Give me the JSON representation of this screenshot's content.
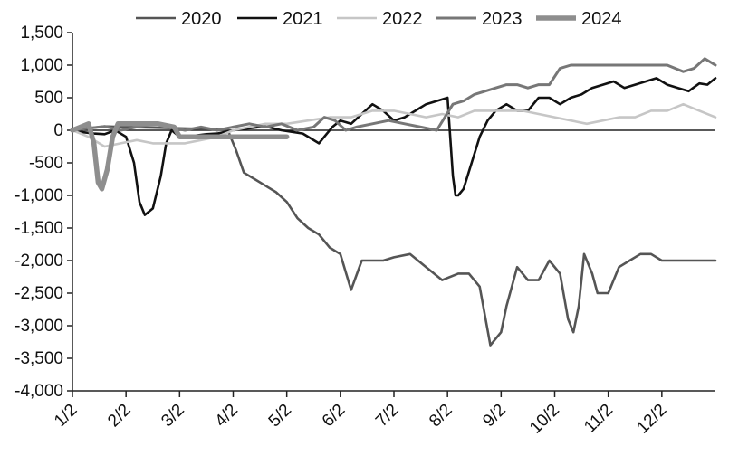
{
  "chart_data": {
    "type": "line",
    "title": "",
    "xlabel": "",
    "ylabel": "",
    "ylim": [
      -4000,
      1500
    ],
    "yticks": [
      1500,
      1000,
      500,
      0,
      -500,
      -1000,
      -1500,
      -2000,
      -2500,
      -3000,
      -3500,
      -4000
    ],
    "ytick_labels": [
      "1,500",
      "1,000",
      "500",
      "0",
      "-500",
      "-1,000",
      "-1,500",
      "-2,000",
      "-2,500",
      "-3,000",
      "-3,500",
      "-4,000"
    ],
    "xlim": [
      0,
      12
    ],
    "xticks": [
      0,
      1,
      2,
      3,
      4,
      5,
      6,
      7,
      8,
      9,
      10,
      11
    ],
    "xtick_labels": [
      "1/2",
      "2/2",
      "3/2",
      "4/2",
      "5/2",
      "6/2",
      "7/2",
      "8/2",
      "9/2",
      "10/2",
      "11/2",
      "12/2"
    ],
    "grid": false,
    "legend": "top",
    "series": [
      {
        "name": "2020",
        "color": "#555555",
        "width": 2.6,
        "x": [
          0,
          0.3,
          0.6,
          1.0,
          1.5,
          2.0,
          2.5,
          2.9,
          3.05,
          3.2,
          3.4,
          3.6,
          3.8,
          4.0,
          4.2,
          4.4,
          4.6,
          4.8,
          5.0,
          5.2,
          5.4,
          5.5,
          5.6,
          5.7,
          5.8,
          6.0,
          6.3,
          6.6,
          6.9,
          7.2,
          7.4,
          7.6,
          7.8,
          8.0,
          8.05,
          8.1,
          8.2,
          8.3,
          8.5,
          8.7,
          8.9,
          9.1,
          9.25,
          9.35,
          9.45,
          9.55,
          9.7,
          9.8,
          9.9,
          10.0,
          10.2,
          10.4,
          10.6,
          10.8,
          11.0,
          11.3,
          11.6,
          12.0
        ],
        "y": [
          0,
          30,
          60,
          50,
          40,
          30,
          20,
          0,
          -300,
          -650,
          -750,
          -850,
          -950,
          -1100,
          -1350,
          -1500,
          -1600,
          -1800,
          -1900,
          -2450,
          -2000,
          -2000,
          -2000,
          -2000,
          -2000,
          -1950,
          -1900,
          -2100,
          -2300,
          -2200,
          -2200,
          -2400,
          -3300,
          -3100,
          -2900,
          -2700,
          -2400,
          -2100,
          -2300,
          -2300,
          -2000,
          -2200,
          -2900,
          -3100,
          -2700,
          -1900,
          -2200,
          -2500,
          -2500,
          -2500,
          -2100,
          -2000,
          -1900,
          -1900,
          -2000,
          -2000,
          -2000,
          -2000
        ]
      },
      {
        "name": "2021",
        "color": "#111111",
        "width": 2.6,
        "x": [
          0,
          0.2,
          0.4,
          0.6,
          0.8,
          1.0,
          1.15,
          1.25,
          1.35,
          1.5,
          1.65,
          1.75,
          1.85,
          2.0,
          2.3,
          2.5,
          2.7,
          3.0,
          3.3,
          3.6,
          3.9,
          4.3,
          4.6,
          4.7,
          4.85,
          5.0,
          5.2,
          5.4,
          5.6,
          5.8,
          6.0,
          6.2,
          6.4,
          6.6,
          6.8,
          7.0,
          7.1,
          7.15,
          7.2,
          7.3,
          7.45,
          7.6,
          7.75,
          7.9,
          8.1,
          8.3,
          8.5,
          8.7,
          8.9,
          9.1,
          9.3,
          9.5,
          9.7,
          9.9,
          10.1,
          10.3,
          10.5,
          10.7,
          10.9,
          11.1,
          11.3,
          11.5,
          11.7,
          11.85,
          12.0
        ],
        "y": [
          0,
          -30,
          -50,
          -60,
          0,
          -100,
          -500,
          -1100,
          -1300,
          -1200,
          -700,
          -200,
          0,
          -100,
          -80,
          -60,
          -50,
          0,
          30,
          60,
          0,
          -50,
          -200,
          -100,
          50,
          150,
          100,
          250,
          400,
          300,
          150,
          200,
          300,
          400,
          450,
          500,
          -700,
          -1000,
          -1000,
          -900,
          -500,
          -100,
          150,
          300,
          400,
          300,
          300,
          500,
          500,
          400,
          500,
          550,
          650,
          700,
          750,
          650,
          700,
          750,
          800,
          700,
          650,
          600,
          720,
          700,
          800
        ]
      },
      {
        "name": "2022",
        "color": "#c6c6c6",
        "width": 2.6,
        "x": [
          0,
          0.3,
          0.6,
          0.9,
          1.2,
          1.5,
          1.8,
          2.1,
          2.4,
          2.7,
          3.0,
          3.3,
          3.6,
          4.0,
          4.4,
          4.8,
          5.2,
          5.6,
          6.0,
          6.3,
          6.6,
          6.9,
          7.2,
          7.5,
          7.8,
          8.1,
          8.4,
          8.7,
          9.0,
          9.3,
          9.6,
          9.9,
          10.2,
          10.5,
          10.8,
          11.1,
          11.4,
          11.7,
          12.0
        ],
        "y": [
          0,
          -100,
          -250,
          -200,
          -150,
          -200,
          -200,
          -200,
          -150,
          -100,
          0,
          50,
          100,
          100,
          150,
          200,
          200,
          300,
          300,
          250,
          200,
          250,
          200,
          300,
          300,
          300,
          300,
          250,
          200,
          150,
          100,
          150,
          200,
          200,
          300,
          300,
          400,
          300,
          200
        ]
      },
      {
        "name": "2023",
        "color": "#777777",
        "width": 3.0,
        "x": [
          0,
          0.3,
          0.6,
          0.9,
          1.2,
          1.5,
          1.8,
          2.1,
          2.4,
          2.7,
          3.0,
          3.3,
          3.6,
          3.9,
          4.2,
          4.5,
          4.7,
          4.9,
          5.1,
          5.3,
          5.6,
          5.9,
          6.2,
          6.5,
          6.8,
          7.1,
          7.3,
          7.5,
          7.7,
          7.9,
          8.1,
          8.3,
          8.5,
          8.7,
          8.9,
          9.1,
          9.3,
          9.6,
          9.9,
          10.2,
          10.5,
          10.8,
          11.1,
          11.4,
          11.6,
          11.8,
          12.0
        ],
        "y": [
          0,
          30,
          60,
          0,
          50,
          100,
          50,
          0,
          50,
          0,
          50,
          100,
          50,
          100,
          0,
          50,
          200,
          150,
          0,
          50,
          100,
          150,
          100,
          50,
          0,
          400,
          450,
          550,
          600,
          650,
          700,
          700,
          650,
          700,
          700,
          950,
          1000,
          1000,
          1000,
          1000,
          1000,
          1000,
          1000,
          900,
          950,
          1100,
          1000
        ]
      },
      {
        "name": "2024",
        "color": "#8e8e8e",
        "width": 5.5,
        "x": [
          0,
          0.15,
          0.3,
          0.4,
          0.48,
          0.55,
          0.65,
          0.75,
          0.85,
          1.0,
          1.3,
          1.6,
          1.9,
          2.0,
          2.3,
          2.6,
          3.0,
          3.5,
          4.0
        ],
        "y": [
          0,
          50,
          100,
          -200,
          -800,
          -900,
          -600,
          -100,
          100,
          100,
          100,
          100,
          50,
          -100,
          -100,
          -100,
          -100,
          -100,
          -100
        ]
      }
    ]
  }
}
